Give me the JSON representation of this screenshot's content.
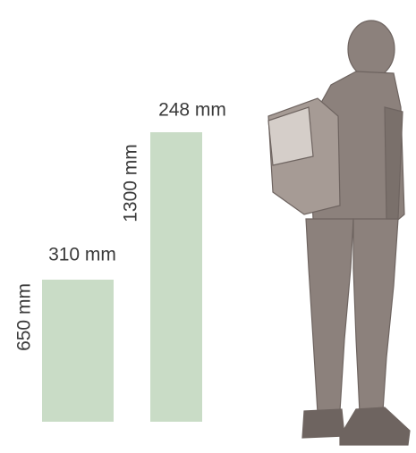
{
  "bars": [
    {
      "width_label": "310 mm",
      "height_label": "650 mm"
    },
    {
      "width_label": "248 mm",
      "height_label": "1300 mm"
    }
  ]
}
